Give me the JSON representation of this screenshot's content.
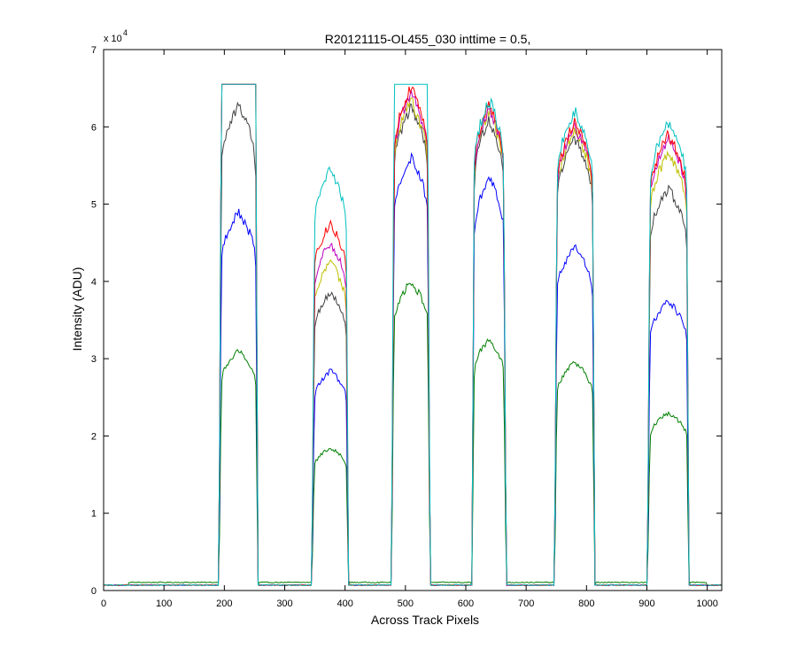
{
  "chart_data": {
    "type": "line",
    "title": "R20121115-OL455_030 inttime = 0.5,",
    "xlabel": "Across Track Pixels",
    "ylabel": "Intensity (ADU)",
    "xlim": [
      0,
      1024
    ],
    "ylim": [
      0,
      70000
    ],
    "x_ticks": [
      0,
      100,
      200,
      300,
      400,
      500,
      600,
      700,
      800,
      900,
      1000
    ],
    "y_ticks": [
      0,
      1,
      2,
      3,
      4,
      5,
      6,
      7
    ],
    "y_tick_labels": [
      "0",
      "1",
      "2",
      "3",
      "4",
      "5",
      "6",
      "7"
    ],
    "y_exponent_label": "x 10",
    "y_exponent_power": "4",
    "baseline": 700,
    "saturation": 65500,
    "segments": [
      {
        "start": 195,
        "end": 252
      },
      {
        "start": 349,
        "end": 402
      },
      {
        "start": 481,
        "end": 537
      },
      {
        "start": 614,
        "end": 663
      },
      {
        "start": 751,
        "end": 810
      },
      {
        "start": 905,
        "end": 966
      }
    ],
    "series": [
      {
        "name": "green",
        "color": "#007f00",
        "levels": [
          31000,
          18500,
          40000,
          32500,
          29500,
          23000
        ]
      },
      {
        "name": "blue",
        "color": "#0000ff",
        "levels": [
          49000,
          28500,
          56000,
          53500,
          44500,
          37500
        ]
      },
      {
        "name": "black",
        "color": "#404040",
        "levels": [
          63000,
          38500,
          62500,
          61000,
          58500,
          52000
        ]
      },
      {
        "name": "yellow",
        "color": "#bfbf00",
        "levels": [
          65500,
          42500,
          63500,
          62000,
          59500,
          56500
        ]
      },
      {
        "name": "magenta",
        "color": "#bf00bf",
        "levels": [
          65500,
          45000,
          64500,
          62500,
          60000,
          58500
        ]
      },
      {
        "name": "red",
        "color": "#ff0000",
        "levels": [
          65500,
          47500,
          65000,
          63000,
          60500,
          59000
        ]
      },
      {
        "name": "cyan",
        "color": "#00bfbf",
        "levels": [
          65500,
          54500,
          65500,
          63500,
          62000,
          60500
        ]
      }
    ]
  }
}
